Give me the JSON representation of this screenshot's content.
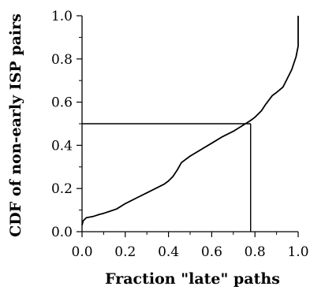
{
  "chart_data": {
    "type": "line",
    "title": "",
    "xlabel": "Fraction \"late\" paths",
    "ylabel": "CDF of non-early ISP pairs",
    "xlim": [
      0.0,
      1.0
    ],
    "ylim": [
      0.0,
      1.0
    ],
    "grid": false,
    "legend": "none",
    "x_ticks": [
      0.0,
      0.2,
      0.4,
      0.6,
      0.8,
      1.0
    ],
    "y_ticks": [
      0.0,
      0.2,
      0.4,
      0.6,
      0.8,
      1.0
    ],
    "x_tick_labels": [
      "0.0",
      "0.2",
      "0.4",
      "0.6",
      "0.8",
      "1.0"
    ],
    "y_tick_labels": [
      "0.0",
      "0.2",
      "0.4",
      "0.6",
      "0.8",
      "1.0"
    ],
    "series": [
      {
        "x": [
          0.0,
          0.005,
          0.02,
          0.05,
          0.08,
          0.1,
          0.13,
          0.16,
          0.2,
          0.25,
          0.3,
          0.35,
          0.38,
          0.4,
          0.42,
          0.44,
          0.46,
          0.5,
          0.55,
          0.6,
          0.65,
          0.7,
          0.74,
          0.78,
          0.8,
          0.83,
          0.85,
          0.88,
          0.9,
          0.93,
          0.95,
          0.97,
          0.99,
          1.0,
          1.0
        ],
        "y": [
          0.03,
          0.05,
          0.065,
          0.07,
          0.08,
          0.085,
          0.095,
          0.105,
          0.13,
          0.155,
          0.18,
          0.205,
          0.22,
          0.235,
          0.255,
          0.285,
          0.32,
          0.35,
          0.38,
          0.41,
          0.44,
          0.465,
          0.49,
          0.515,
          0.53,
          0.56,
          0.59,
          0.63,
          0.645,
          0.67,
          0.71,
          0.75,
          0.81,
          0.86,
          1.0
        ]
      }
    ],
    "annotations": [
      {
        "type": "hline",
        "y": 0.5,
        "x_from": 0.0,
        "x_to": 0.78
      },
      {
        "type": "vline",
        "x": 0.78,
        "y_from": 0.0,
        "y_to": 0.5
      }
    ],
    "colors": {
      "line": "#000000",
      "axis": "#000000",
      "background": "#ffffff"
    }
  }
}
